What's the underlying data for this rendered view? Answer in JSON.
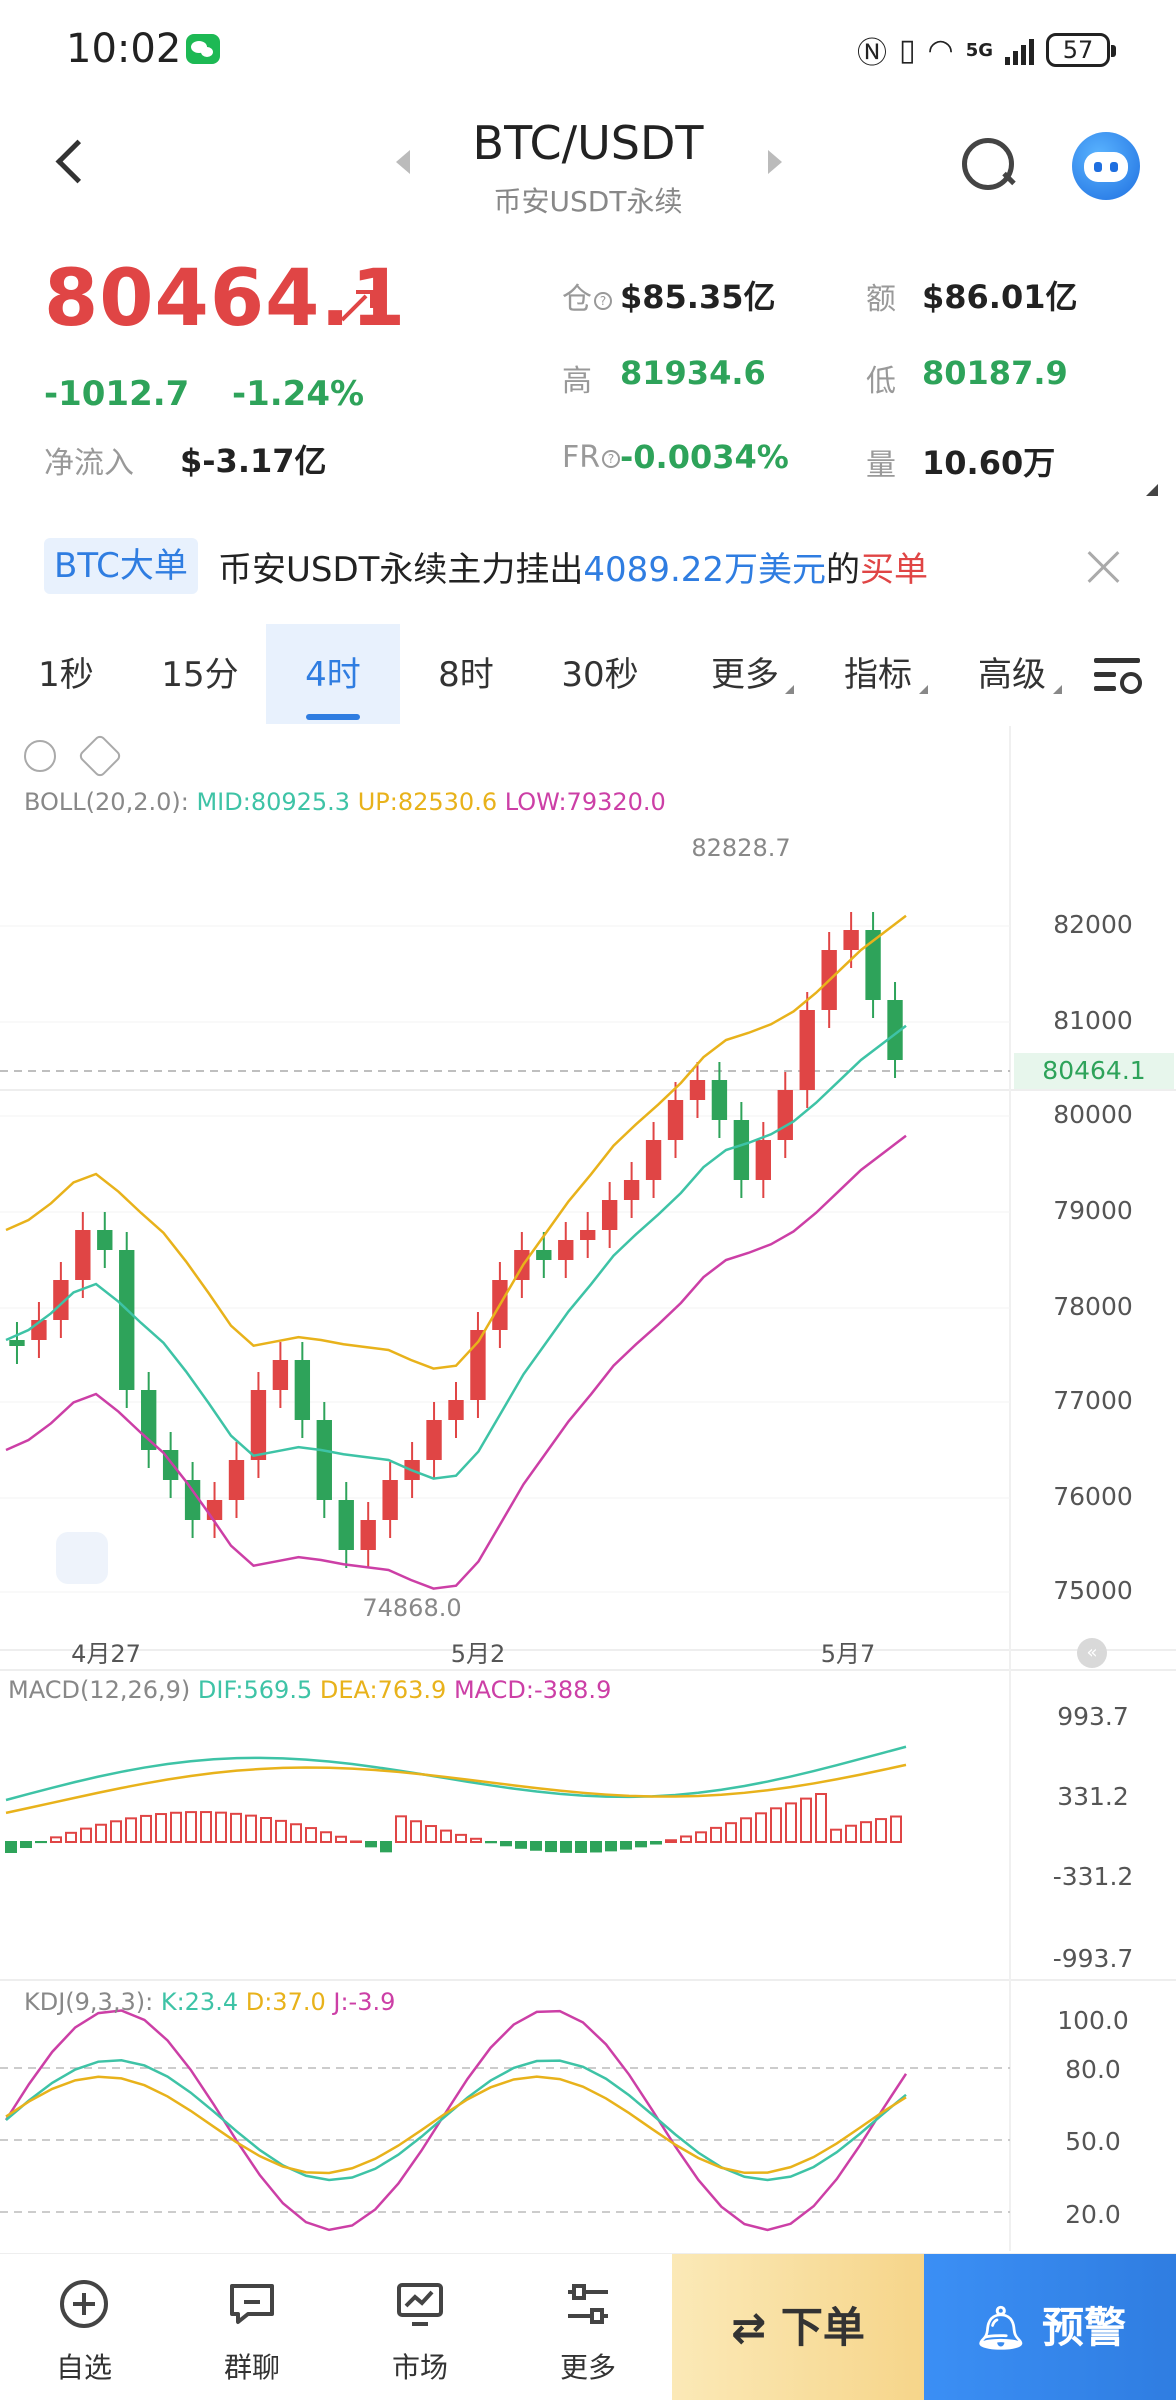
{
  "status_bar": {
    "time": "10:02",
    "network": "5G",
    "battery": "57"
  },
  "header": {
    "title": "BTC/USDT",
    "subtitle": "币安USDT永续"
  },
  "quote": {
    "price": "80464.1",
    "change": "-1012.7",
    "change_pct": "-1.24%",
    "netflow_label": "净流入",
    "netflow_value": "$-3.17亿",
    "oi_label": "仓",
    "oi_value": "$85.35亿",
    "amount_label": "额",
    "amount_value": "$86.01亿",
    "high_label": "高",
    "high_value": "81934.6",
    "low_label": "低",
    "low_value": "80187.9",
    "fr_label": "FR",
    "fr_value": "-0.0034%",
    "vol_label": "量",
    "vol_value": "10.60万"
  },
  "notice": {
    "tag": "BTC大单",
    "text_prefix": "币安USDT永续主力挂出",
    "amount": "4089.22万美元",
    "text_mid": "的",
    "side": "买单"
  },
  "tabs": [
    {
      "label": "1秒",
      "active": false
    },
    {
      "label": "15分",
      "active": false
    },
    {
      "label": "4时",
      "active": true
    },
    {
      "label": "8时",
      "active": false
    },
    {
      "label": "30秒",
      "active": false
    },
    {
      "label": "更多",
      "active": false
    },
    {
      "label": "指标",
      "active": false
    },
    {
      "label": "高级",
      "active": false
    }
  ],
  "chart": {
    "boll": {
      "name": "BOLL(20,2.0):",
      "mid": "MID:80925.3",
      "up": "UP:82530.6",
      "low": "LOW:79320.0"
    },
    "high_marker": "82828.7",
    "low_marker": "74868.0",
    "last_price": "80464.1",
    "y_ticks": [
      "82000",
      "81000",
      "80000",
      "79000",
      "78000",
      "77000",
      "76000",
      "75000"
    ],
    "x_ticks": [
      "4月27",
      "5月2",
      "5月7"
    ],
    "macd": {
      "name": "MACD(12,26,9)",
      "dif": "DIF:569.5",
      "dea": "DEA:763.9",
      "macd": "MACD:-388.9",
      "ticks": [
        "993.7",
        "331.2",
        "-331.2",
        "-993.7"
      ]
    },
    "kdj": {
      "name": "KDJ(9,3,3):",
      "k": "K:23.4",
      "d": "D:37.0",
      "j": "J:-3.9",
      "ticks": [
        "100.0",
        "80.0",
        "50.0",
        "20.0"
      ]
    },
    "colors": {
      "up": "#e04545",
      "down": "#2ea35a",
      "mid": "#3ec3a6",
      "upper": "#e8b21b",
      "lower": "#cc3fa6"
    }
  },
  "bottom_nav": {
    "items": [
      {
        "label": "自选",
        "icon": "plus-circle-icon"
      },
      {
        "label": "群聊",
        "icon": "chat-icon"
      },
      {
        "label": "市场",
        "icon": "chart-monitor-icon"
      },
      {
        "label": "更多",
        "icon": "sliders-icon"
      }
    ],
    "order_button": "下单",
    "alert_button": "预警"
  }
}
